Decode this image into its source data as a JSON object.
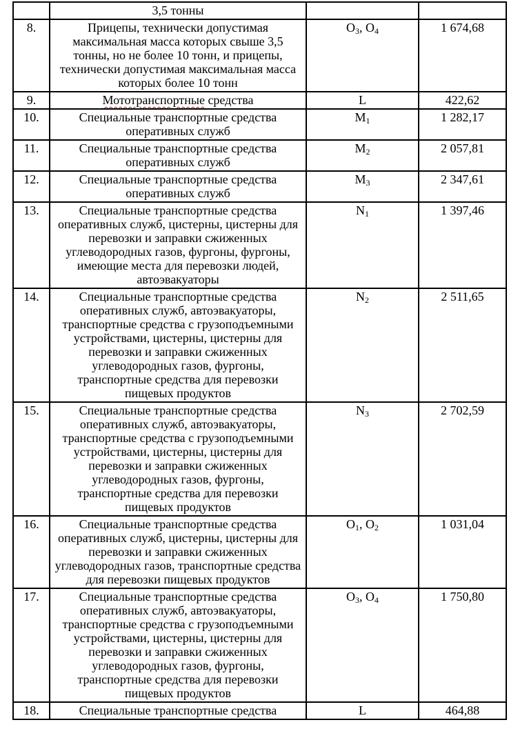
{
  "page": {
    "background_color": "#ffffff",
    "text_color": "#000000",
    "border_color": "#000000",
    "squiggle_color": "#e00000"
  },
  "table": {
    "rows": [
      {
        "num": "",
        "desc": "3,5 тонны",
        "cat": "",
        "price": ""
      },
      {
        "num": "8.",
        "desc": "Прицепы, технически допустимая максимальная масса которых свыше 3,5 тонны, но не более 10 тонн, и прицепы, технически допустимая максимальная масса которых более 10 тонн",
        "cat": "O3, O4",
        "price": "1 674,68"
      },
      {
        "num": "9.",
        "desc": "Мототранспортные средства",
        "squiggle_word": "Мототранспортные",
        "cat": "L",
        "price": "422,62"
      },
      {
        "num": "10.",
        "desc": "Специальные транспортные средства оперативных служб",
        "cat": "M1",
        "price": "1 282,17"
      },
      {
        "num": "11.",
        "desc": "Специальные транспортные средства оперативных служб",
        "cat": "M2",
        "price": "2 057,81"
      },
      {
        "num": "12.",
        "desc": "Специальные транспортные средства оперативных служб",
        "cat": "M3",
        "price": "2 347,61"
      },
      {
        "num": "13.",
        "desc": "Специальные транспортные средства оперативных служб, цистерны, цистерны для перевозки и заправки сжиженных углеводородных газов, фургоны, фургоны, имеющие места для перевозки людей, автоэвакуаторы",
        "cat": "N1",
        "price": "1 397,46"
      },
      {
        "num": "14.",
        "desc": "Специальные транспортные средства оперативных служб, автоэвакуаторы, транспортные средства с грузоподъемными устройствами, цистерны, цистерны для перевозки и заправки сжиженных углеводородных газов, фургоны, транспортные средства для перевозки пищевых продуктов",
        "cat": "N2",
        "price": "2 511,65"
      },
      {
        "num": "15.",
        "desc": "Специальные транспортные средства оперативных служб, автоэвакуаторы, транспортные средства с грузоподъемными устройствами, цистерны, цистерны для перевозки и заправки сжиженных углеводородных газов, фургоны, транспортные средства для перевозки пищевых продуктов",
        "cat": "N3",
        "price": "2 702,59"
      },
      {
        "num": "16.",
        "desc": "Специальные транспортные средства оперативных служб, цистерны, цистерны для перевозки и заправки сжиженных углеводородных газов, транспортные средства для перевозки пищевых продуктов",
        "cat": "O1, O2",
        "price": "1 031,04"
      },
      {
        "num": "17.",
        "desc": "Специальные транспортные средства оперативных служб, автоэвакуаторы, транспортные средства с грузоподъемными устройствами, цистерны, цистерны для перевозки и заправки сжиженных углеводородных газов, фургоны, транспортные средства для перевозки пищевых продуктов",
        "cat": "O3, O4",
        "price": "1 750,80"
      },
      {
        "num": "18.",
        "desc": "Специальные транспортные средства",
        "cat": "L",
        "price": "464,88"
      }
    ]
  }
}
